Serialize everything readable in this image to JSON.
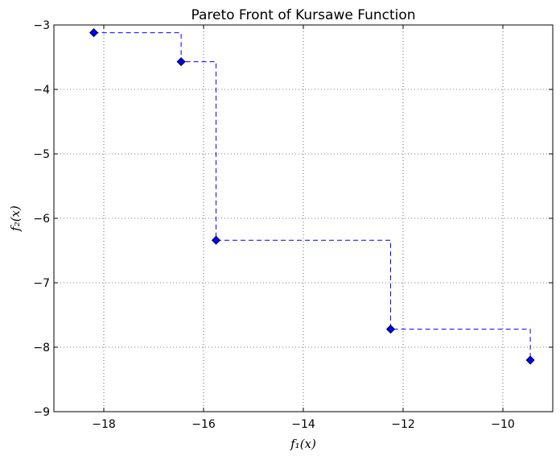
{
  "chart_data": {
    "type": "scatter",
    "title": "Pareto Front of Kursawe Function",
    "xlabel": "f₁(x)",
    "ylabel": "f₂(x)",
    "xlim": [
      -19,
      -9
    ],
    "ylim": [
      -9,
      -3
    ],
    "xticks": [
      -18,
      -16,
      -14,
      -12,
      -10
    ],
    "yticks": [
      -9,
      -8,
      -7,
      -6,
      -5,
      -4,
      -3
    ],
    "xtick_labels": [
      "−18",
      "−16",
      "−14",
      "−12",
      "−10"
    ],
    "ytick_labels": [
      "−9",
      "−8",
      "−7",
      "−6",
      "−5",
      "−4",
      "−3"
    ],
    "grid": true,
    "series": [
      {
        "marker": "diamond",
        "line_style": "dashed-steps-post",
        "color": "#0000ff",
        "x": [
          -18.2,
          -16.45,
          -15.75,
          -12.25,
          -9.45
        ],
        "y": [
          -3.12,
          -3.57,
          -6.34,
          -7.72,
          -8.2
        ]
      }
    ]
  }
}
